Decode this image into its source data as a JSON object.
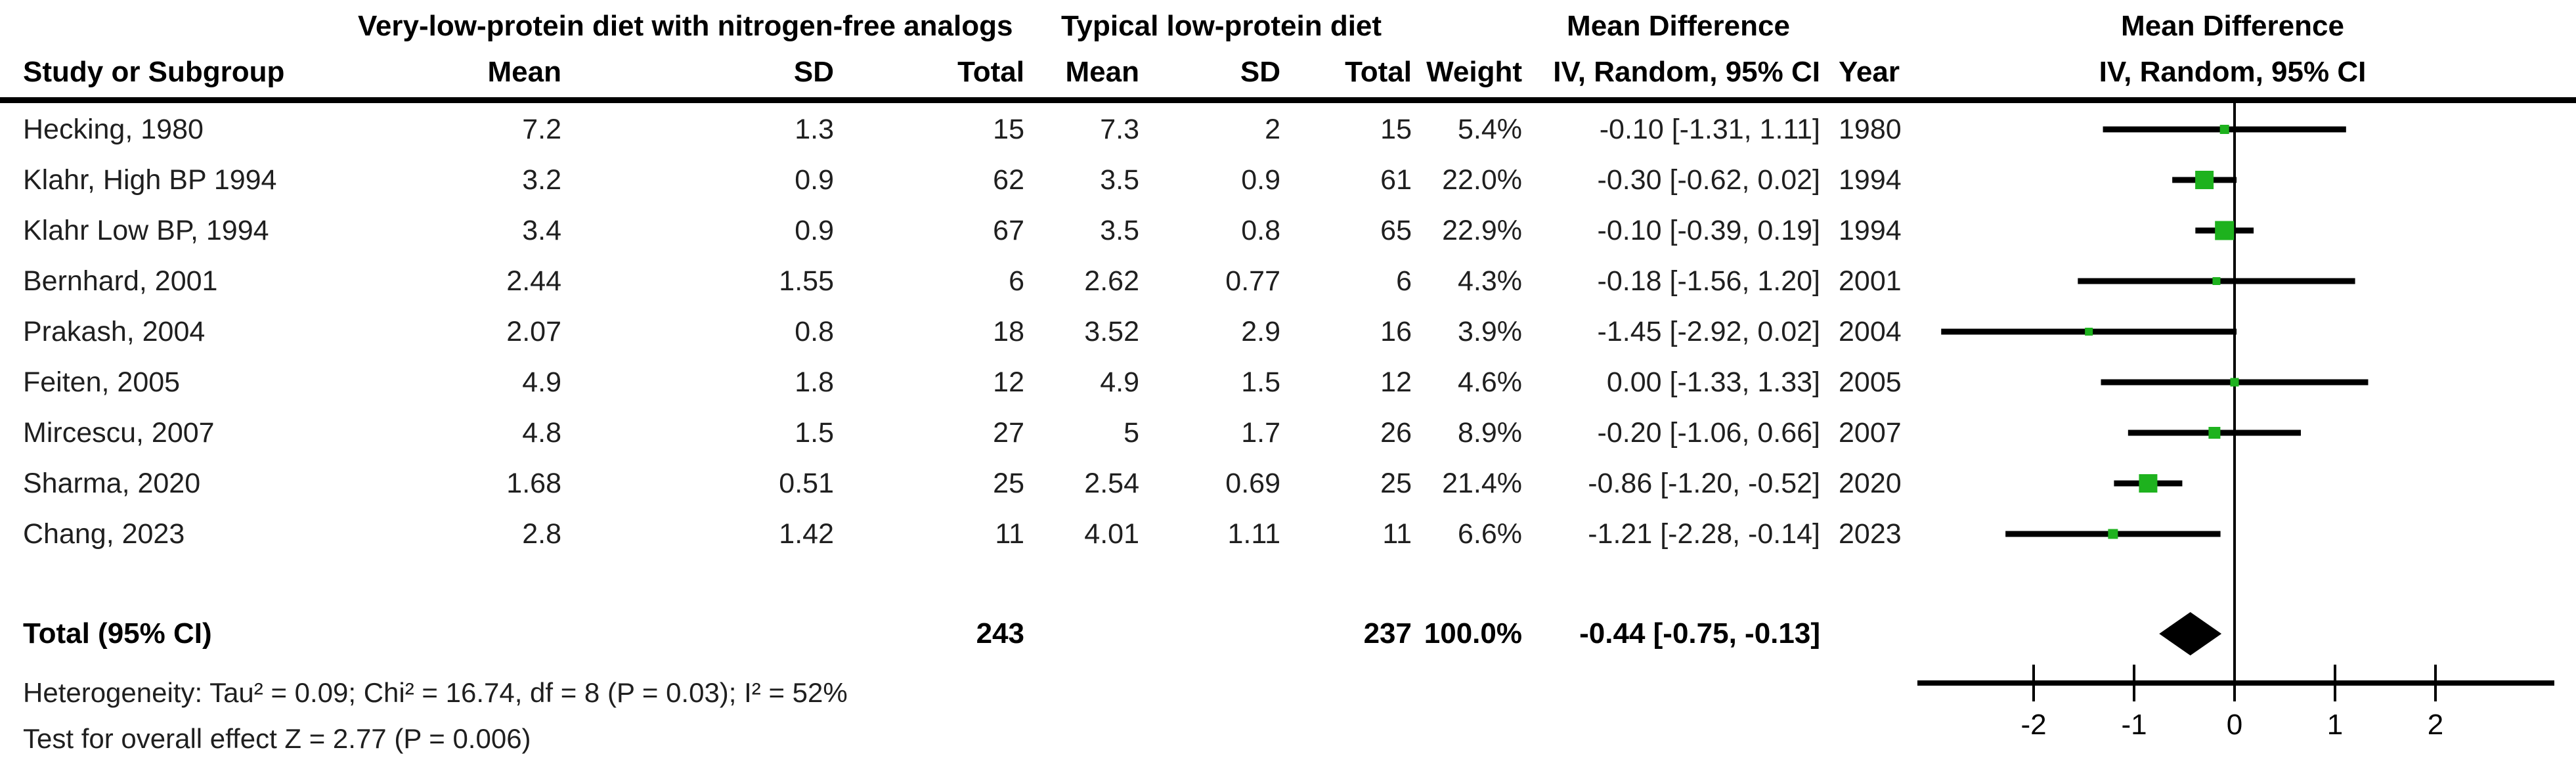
{
  "table": {
    "group1_header": "Very-low-protein diet with nitrogen-free analogs",
    "group2_header": "Typical low-protein diet",
    "md_header": "Mean Difference",
    "md_subheader": "IV, Random, 95% CI",
    "plot_header": "Mean Difference",
    "plot_subheader": "IV, Random, 95% CI",
    "columns": {
      "study": "Study or Subgroup",
      "mean1": "Mean",
      "sd1": "SD",
      "total1": "Total",
      "mean2": "Mean",
      "sd2": "SD",
      "total2": "Total",
      "weight": "Weight",
      "ci": "IV, Random, 95% CI",
      "year": "Year"
    },
    "rows": [
      {
        "study": "Hecking, 1980",
        "mean1": "7.2",
        "sd1": "1.3",
        "total1": "15",
        "mean2": "7.3",
        "sd2": "2",
        "total2": "15",
        "weight": "5.4%",
        "ci": "-0.10 [-1.31, 1.11]",
        "year": "1980"
      },
      {
        "study": "Klahr, High BP 1994",
        "mean1": "3.2",
        "sd1": "0.9",
        "total1": "62",
        "mean2": "3.5",
        "sd2": "0.9",
        "total2": "61",
        "weight": "22.0%",
        "ci": "-0.30 [-0.62, 0.02]",
        "year": "1994"
      },
      {
        "study": "Klahr Low BP, 1994",
        "mean1": "3.4",
        "sd1": "0.9",
        "total1": "67",
        "mean2": "3.5",
        "sd2": "0.8",
        "total2": "65",
        "weight": "22.9%",
        "ci": "-0.10 [-0.39, 0.19]",
        "year": "1994"
      },
      {
        "study": "Bernhard, 2001",
        "mean1": "2.44",
        "sd1": "1.55",
        "total1": "6",
        "mean2": "2.62",
        "sd2": "0.77",
        "total2": "6",
        "weight": "4.3%",
        "ci": "-0.18 [-1.56, 1.20]",
        "year": "2001"
      },
      {
        "study": "Prakash, 2004",
        "mean1": "2.07",
        "sd1": "0.8",
        "total1": "18",
        "mean2": "3.52",
        "sd2": "2.9",
        "total2": "16",
        "weight": "3.9%",
        "ci": "-1.45 [-2.92, 0.02]",
        "year": "2004"
      },
      {
        "study": "Feiten, 2005",
        "mean1": "4.9",
        "sd1": "1.8",
        "total1": "12",
        "mean2": "4.9",
        "sd2": "1.5",
        "total2": "12",
        "weight": "4.6%",
        "ci": "0.00 [-1.33, 1.33]",
        "year": "2005"
      },
      {
        "study": "Mircescu, 2007",
        "mean1": "4.8",
        "sd1": "1.5",
        "total1": "27",
        "mean2": "5",
        "sd2": "1.7",
        "total2": "26",
        "weight": "8.9%",
        "ci": "-0.20 [-1.06, 0.66]",
        "year": "2007"
      },
      {
        "study": "Sharma, 2020",
        "mean1": "1.68",
        "sd1": "0.51",
        "total1": "25",
        "mean2": "2.54",
        "sd2": "0.69",
        "total2": "25",
        "weight": "21.4%",
        "ci": "-0.86 [-1.20, -0.52]",
        "year": "2020"
      },
      {
        "study": "Chang, 2023",
        "mean1": "2.8",
        "sd1": "1.42",
        "total1": "11",
        "mean2": "4.01",
        "sd2": "1.11",
        "total2": "11",
        "weight": "6.6%",
        "ci": "-1.21 [-2.28, -0.14]",
        "year": "2023"
      }
    ],
    "total": {
      "label": "Total (95% CI)",
      "total1": "243",
      "total2": "237",
      "weight": "100.0%",
      "ci": "-0.44 [-0.75, -0.13]"
    },
    "heterogeneity": "Heterogeneity: Tau² = 0.09; Chi² = 16.74, df = 8 (P = 0.03); I² = 52%",
    "overall_effect": "Test for overall effect Z = 2.77 (P = 0.006)"
  },
  "chart_data": {
    "type": "forest",
    "effect_measure": "Mean Difference, IV, Random, 95% CI",
    "axis_ticks": [
      -2,
      -1,
      0,
      1,
      2
    ],
    "axis_range": [
      -3.16,
      3.18
    ],
    "zero_line": 0,
    "studies": [
      {
        "name": "Hecking, 1980",
        "md": -0.1,
        "ci_low": -1.31,
        "ci_high": 1.11,
        "weight_pct": 5.4
      },
      {
        "name": "Klahr, High BP 1994",
        "md": -0.3,
        "ci_low": -0.62,
        "ci_high": 0.02,
        "weight_pct": 22.0
      },
      {
        "name": "Klahr Low BP, 1994",
        "md": -0.1,
        "ci_low": -0.39,
        "ci_high": 0.19,
        "weight_pct": 22.9
      },
      {
        "name": "Bernhard, 2001",
        "md": -0.18,
        "ci_low": -1.56,
        "ci_high": 1.2,
        "weight_pct": 4.3
      },
      {
        "name": "Prakash, 2004",
        "md": -1.45,
        "ci_low": -2.92,
        "ci_high": 0.02,
        "weight_pct": 3.9
      },
      {
        "name": "Feiten, 2005",
        "md": 0.0,
        "ci_low": -1.33,
        "ci_high": 1.33,
        "weight_pct": 4.6
      },
      {
        "name": "Mircescu, 2007",
        "md": -0.2,
        "ci_low": -1.06,
        "ci_high": 0.66,
        "weight_pct": 8.9
      },
      {
        "name": "Sharma, 2020",
        "md": -0.86,
        "ci_low": -1.2,
        "ci_high": -0.52,
        "weight_pct": 21.4
      },
      {
        "name": "Chang, 2023",
        "md": -1.21,
        "ci_low": -2.28,
        "ci_high": -0.14,
        "weight_pct": 6.6
      }
    ],
    "summary": {
      "label": "Total (95% CI)",
      "md": -0.44,
      "ci_low": -0.75,
      "ci_high": -0.13
    },
    "colors": {
      "marker": "#1EB21E",
      "line": "#000000",
      "diamond": "#000000"
    }
  }
}
